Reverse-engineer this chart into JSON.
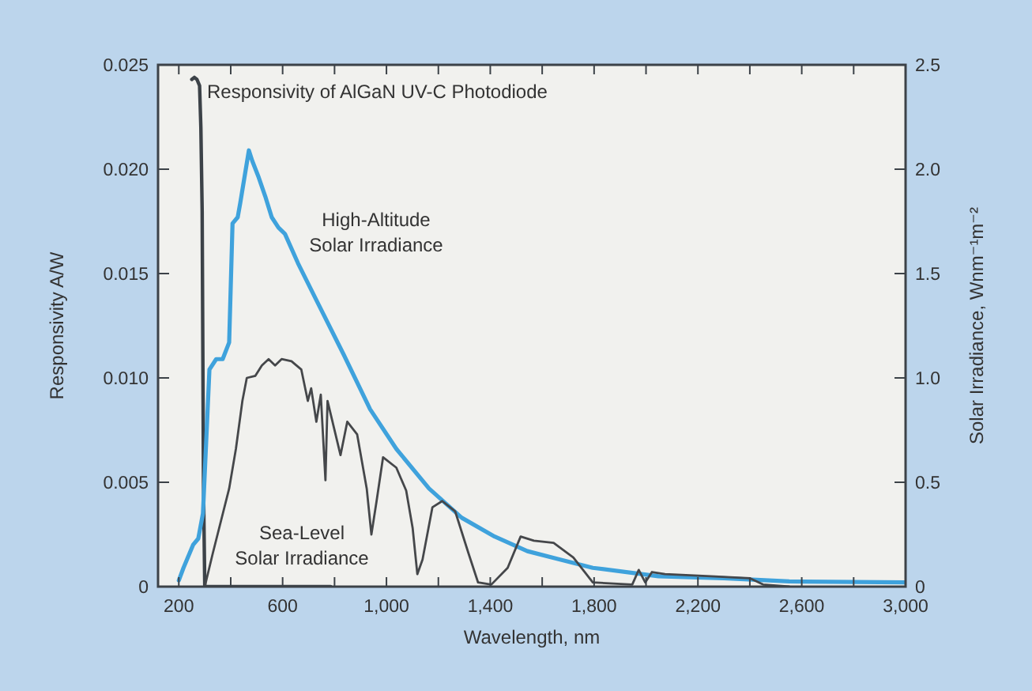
{
  "chart_data": {
    "type": "line",
    "xlabel": "Wavelength, nm",
    "ylabel": "Responsivity A/W",
    "y2label": "Solar Irradiance, Wnm⁻¹m⁻²",
    "xlim": [
      120,
      3000
    ],
    "xticks": [
      {
        "value": 200,
        "label": "200"
      },
      {
        "value": 400,
        "label": null
      },
      {
        "value": 600,
        "label": "600"
      },
      {
        "value": 800,
        "label": null
      },
      {
        "value": 1000,
        "label": "1,000"
      },
      {
        "value": 1200,
        "label": null
      },
      {
        "value": 1400,
        "label": "1,400"
      },
      {
        "value": 1600,
        "label": null
      },
      {
        "value": 1800,
        "label": "1,800"
      },
      {
        "value": 2000,
        "label": null
      },
      {
        "value": 2200,
        "label": "2,200"
      },
      {
        "value": 2400,
        "label": null
      },
      {
        "value": 2600,
        "label": "2,600"
      },
      {
        "value": 2800,
        "label": null
      },
      {
        "value": 3000,
        "label": "3,000"
      }
    ],
    "ylim": [
      0,
      0.025
    ],
    "yticks": [
      0,
      {
        "value": 0.005,
        "label": "0.005"
      },
      {
        "value": 0.01,
        "label": "0.010"
      },
      {
        "value": 0.015,
        "label": "0.015"
      },
      {
        "value": 0.02,
        "label": "0.020"
      },
      {
        "value": 0.025,
        "label": "0.025"
      }
    ],
    "y2lim": [
      0,
      2.5
    ],
    "y2ticks": [
      0,
      {
        "value": 0.5,
        "label": "0.5"
      },
      {
        "value": 1,
        "label": "1.0"
      },
      {
        "value": 1.5,
        "label": "1.5"
      },
      {
        "value": 2,
        "label": "2.0"
      },
      {
        "value": 2.5,
        "label": "2.5"
      }
    ],
    "grid": false,
    "legend": "top left",
    "series": [
      {
        "name": "Responsivity of AlGaN UV-C Photodiode",
        "color": "#3c4248",
        "x": [
          250,
          260,
          270,
          280,
          285,
          290,
          295,
          300,
          400,
          600,
          785
        ],
        "values": [
          0.0243,
          0.0244,
          0.0243,
          0.024,
          0.022,
          0.018,
          0.005,
          0,
          0,
          0,
          0
        ]
      },
      {
        "name": "High-Altitude\nSolar Irradiance",
        "color": "#3fa2dc",
        "axis": "y2",
        "x": [
          200,
          218,
          255,
          275,
          293,
          318,
          344,
          369,
          394,
          407,
          427,
          437,
          470,
          483,
          508,
          533,
          558,
          584,
          609,
          659,
          735,
          836,
          937,
          1038,
          1164,
          1290,
          1417,
          1543,
          1669,
          1795,
          2048,
          2300,
          2552,
          3000
        ],
        "values": [
          0.03,
          0.09,
          0.2,
          0.23,
          0.35,
          1.04,
          1.09,
          1.09,
          1.17,
          1.74,
          1.77,
          1.84,
          2.09,
          2.04,
          1.96,
          1.87,
          1.77,
          1.72,
          1.69,
          1.55,
          1.36,
          1.11,
          0.85,
          0.66,
          0.47,
          0.33,
          0.24,
          0.17,
          0.13,
          0.09,
          0.05,
          0.04,
          0.025,
          0.02
        ]
      },
      {
        "name": "Sea-Level\nSolar Irradiance",
        "color": "#45474a",
        "axis": "y2",
        "x": [
          300,
          331,
          394,
          420,
          445,
          462,
          495,
          520,
          546,
          571,
          596,
          634,
          672,
          697,
          710,
          730,
          747,
          765,
          773,
          798,
          823,
          849,
          887,
          924,
          942,
          962,
          987,
          1038,
          1076,
          1101,
          1119,
          1139,
          1177,
          1215,
          1265,
          1316,
          1353,
          1404,
          1467,
          1517,
          1568,
          1644,
          1720,
          1795,
          1947,
          1972,
          1997,
          2023,
          2073,
          2250,
          2401,
          2451,
          2552
        ],
        "values": [
          0,
          0.16,
          0.47,
          0.66,
          0.89,
          1.0,
          1.01,
          1.06,
          1.09,
          1.06,
          1.09,
          1.08,
          1.04,
          0.89,
          0.95,
          0.79,
          0.92,
          0.51,
          0.89,
          0.76,
          0.63,
          0.79,
          0.73,
          0.47,
          0.25,
          0.41,
          0.62,
          0.57,
          0.46,
          0.28,
          0.06,
          0.13,
          0.38,
          0.41,
          0.36,
          0.16,
          0.02,
          0.01,
          0.09,
          0.24,
          0.22,
          0.21,
          0.14,
          0.02,
          0.01,
          0.08,
          0.02,
          0.07,
          0.06,
          0.05,
          0.04,
          0.01,
          0
        ]
      }
    ]
  }
}
